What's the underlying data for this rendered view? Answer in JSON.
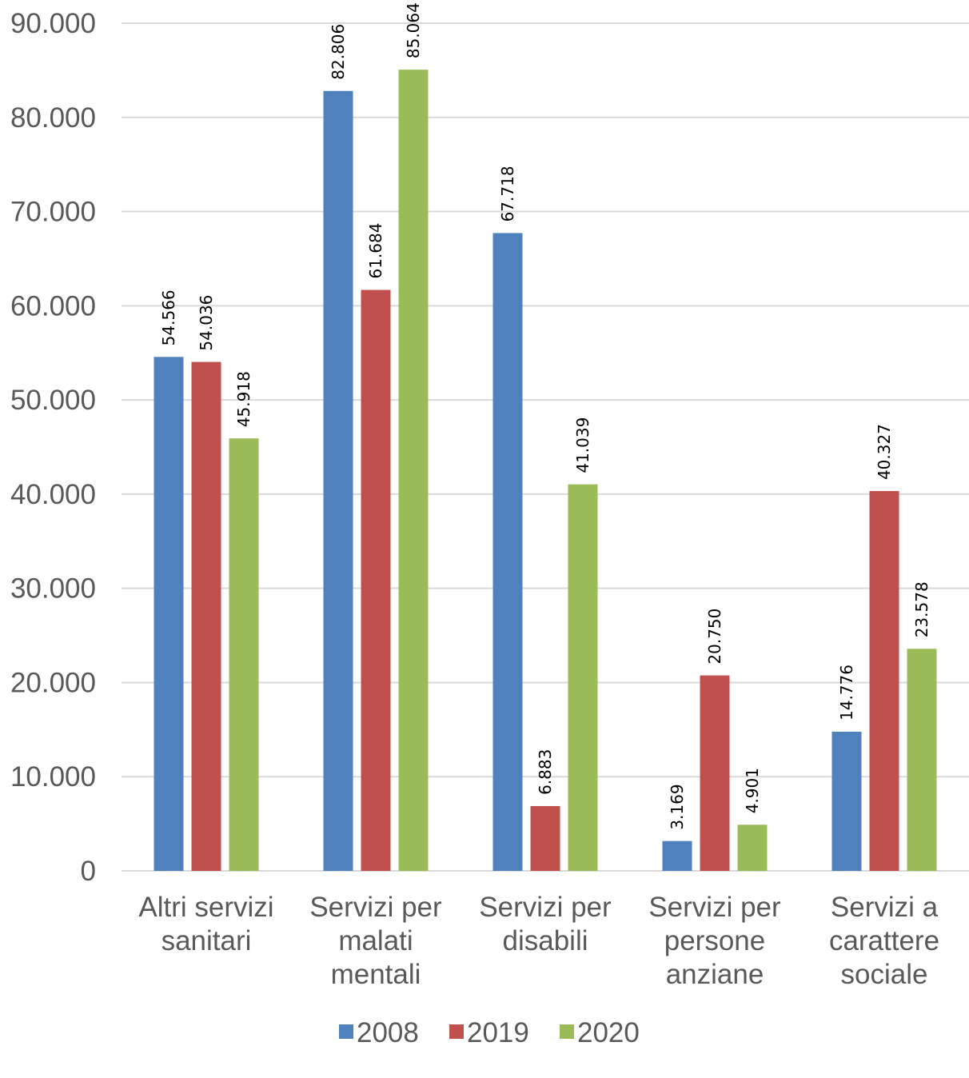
{
  "chart_data": {
    "type": "bar",
    "title": "",
    "xlabel": "",
    "ylabel": "",
    "ylim": [
      0,
      90000
    ],
    "y_tick_step": 10000,
    "y_ticks": [
      "0",
      "10.000",
      "20.000",
      "30.000",
      "40.000",
      "50.000",
      "60.000",
      "70.000",
      "80.000",
      "90.000"
    ],
    "grid": true,
    "legend_position": "bottom",
    "categories": [
      [
        "Altri servizi",
        "sanitari"
      ],
      [
        "Servizi per",
        "malati",
        "mentali"
      ],
      [
        "Servizi per",
        "disabili"
      ],
      [
        "Servizi per",
        "persone",
        "anziane"
      ],
      [
        "Servizi a",
        "carattere",
        "sociale"
      ]
    ],
    "series": [
      {
        "name": "2008",
        "color": "#4f81bd",
        "values": [
          54566,
          82806,
          67718,
          3169,
          14776
        ],
        "labels": [
          "54.566",
          "82.806",
          "67.718",
          "3.169",
          "14.776"
        ]
      },
      {
        "name": "2019",
        "color": "#c0504d",
        "values": [
          54036,
          61684,
          6883,
          20750,
          40327
        ],
        "labels": [
          "54.036",
          "61.684",
          "6.883",
          "20.750",
          "40.327"
        ]
      },
      {
        "name": "2020",
        "color": "#9bbb59",
        "values": [
          45918,
          85064,
          41039,
          4901,
          23578
        ],
        "labels": [
          "45.918",
          "85.064",
          "41.039",
          "4.901",
          "23.578"
        ]
      }
    ]
  }
}
